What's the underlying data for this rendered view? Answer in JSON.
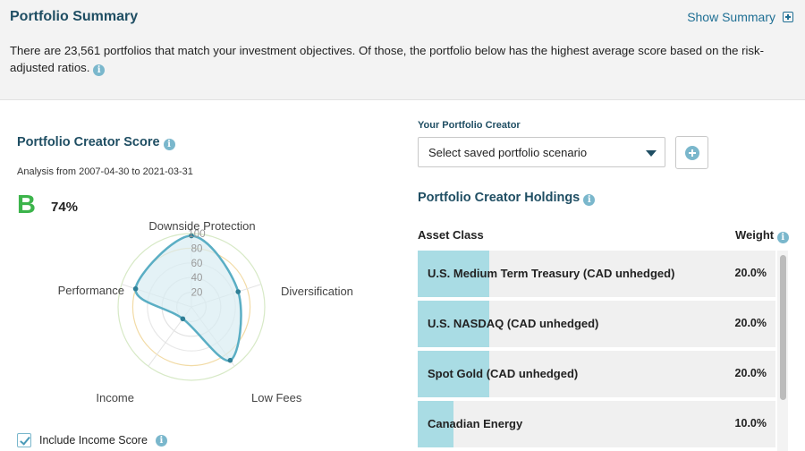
{
  "summary": {
    "title": "Portfolio Summary",
    "show_label": "Show Summary",
    "text": "There are 23,561 portfolios that match your investment objectives. Of those, the portfolio below has the highest average score based on the risk-adjusted ratios."
  },
  "score": {
    "title": "Portfolio Creator Score",
    "analysis": "Analysis from 2007-04-30 to 2021-03-31",
    "grade": "B",
    "percent": "74%",
    "include_income_label": "Include Income Score",
    "include_income_checked": true
  },
  "chart_data": {
    "type": "radar",
    "axes": [
      "Downside Protection",
      "Diversification",
      "Low Fees",
      "Income",
      "Performance"
    ],
    "values": [
      97,
      67,
      90,
      20,
      80
    ],
    "rlim": [
      0,
      100
    ],
    "ticks": [
      "20",
      "40",
      "60",
      "80",
      "100"
    ],
    "colors": {
      "line": "#5aaec4",
      "fill": "#d8edf2",
      "point": "#2f7f96"
    }
  },
  "creator": {
    "label": "Your Portfolio Creator",
    "select_value": "Select saved portfolio scenario"
  },
  "holdings": {
    "title": "Portfolio Creator Holdings",
    "col_asset": "Asset Class",
    "col_weight": "Weight",
    "rows": [
      {
        "label": "U.S. Medium Term Treasury (CAD unhedged)",
        "weight": "20.0%",
        "fraction": 0.2
      },
      {
        "label": "U.S. NASDAQ (CAD unhedged)",
        "weight": "20.0%",
        "fraction": 0.2
      },
      {
        "label": "Spot Gold (CAD unhedged)",
        "weight": "20.0%",
        "fraction": 0.2
      },
      {
        "label": "Canadian Energy",
        "weight": "10.0%",
        "fraction": 0.1
      }
    ]
  },
  "icons": {
    "info": "info-icon",
    "plus": "plus-box-icon",
    "add": "plus-circle-icon",
    "dropdown": "caret-down-icon"
  }
}
